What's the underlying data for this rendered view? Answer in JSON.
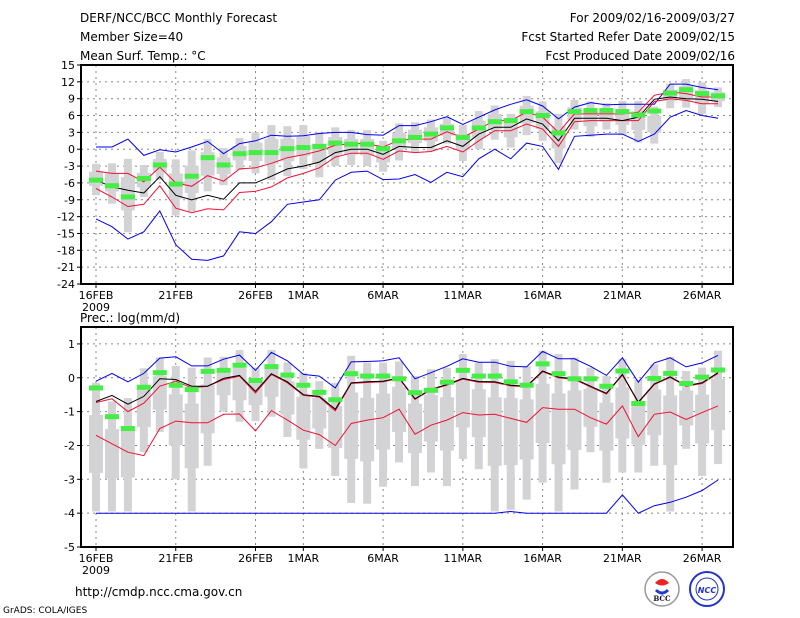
{
  "header": {
    "title": "DERF/NCC/BCC Monthly Forecast",
    "member_size": "Member Size=40",
    "variable": "Mean Surf. Temp.: °C",
    "period": "For 2009/02/16-2009/03/27",
    "start_date": "Fcst Started Refer Date 2009/02/15",
    "produced_date": "Fcst Produced Date 2009/02/16"
  },
  "footer": {
    "url": "http://cmdp.ncc.cma.gov.cn",
    "credit": "GrADS: COLA/IGES",
    "logos": [
      "BCC",
      "NCC"
    ]
  },
  "colors": {
    "range": "#d3d3d6",
    "mean": "#44ee44",
    "median": "#000000",
    "spread": "#ee1133",
    "extreme": "#0000ee",
    "grid": "#888888"
  },
  "chart_data": [
    {
      "type": "box-line",
      "title": "Mean Surf. Temp.: °C",
      "ylim": [
        -24,
        15
      ],
      "yticks": [
        "15",
        "12",
        "9",
        "6",
        "3",
        "0",
        "-3",
        "-6",
        "-9",
        "-12",
        "-15",
        "-18",
        "-21",
        "-24"
      ],
      "ytick_values": [
        15,
        12,
        9,
        6,
        3,
        0,
        -3,
        -6,
        -9,
        -12,
        -15,
        -18,
        -21,
        -24
      ],
      "xtick_days": [
        0,
        5,
        10,
        13,
        18,
        23,
        28,
        33,
        38
      ],
      "xticks": [
        "16FEB",
        "21FEB",
        "26FEB",
        "1MAR",
        "6MAR",
        "11MAR",
        "16MAR",
        "21MAR",
        "26MAR"
      ],
      "xtick_year": "2009",
      "grid": true,
      "days": 40,
      "range_low": [
        -8.2,
        -9.7,
        -14.8,
        -8.5,
        -5.5,
        -11.8,
        -11.1,
        -7.5,
        -6.4,
        -3.7,
        -4.3,
        -5.5,
        -4.8,
        -3.5,
        -5,
        -3,
        -2.8,
        -3,
        -4,
        -2,
        -0.5,
        -0.3,
        1,
        -2.1,
        0,
        1.7,
        0.3,
        2.5,
        1.5,
        -2.5,
        3.5,
        2.2,
        3.5,
        2.5,
        1.2,
        1.0,
        7.3,
        7.4,
        6.3,
        7.5
      ],
      "range_high": [
        -2.6,
        -2.5,
        -1.7,
        -2.8,
        -0.5,
        -1.8,
        -0.2,
        1.8,
        0.2,
        2.0,
        3.0,
        4.3,
        4.1,
        4.3,
        3,
        3.9,
        3.4,
        3.4,
        1.5,
        4.6,
        4.8,
        5.3,
        5.7,
        4.3,
        6.8,
        7.8,
        6.3,
        9.5,
        8.5,
        6.3,
        8.8,
        8.5,
        8.2,
        8.6,
        8.6,
        7.6,
        11.7,
        12.5,
        11.9,
        11.0
      ],
      "mean": [
        -5.5,
        -6.5,
        -8.5,
        -5.2,
        -2.8,
        -6.2,
        -4.8,
        -1.5,
        -2.8,
        -0.8,
        -0.6,
        -0.6,
        0.1,
        0.3,
        0.5,
        1.1,
        0.9,
        0.9,
        0.1,
        1.5,
        2.1,
        2.7,
        3.8,
        2.1,
        3.8,
        4.9,
        5.1,
        6.7,
        6.0,
        2.9,
        6.7,
        6.9,
        6.9,
        6.7,
        6.1,
        6.8,
        10.0,
        10.6,
        9.9,
        9.5
      ],
      "median": [
        -5.5,
        -6.7,
        -7.3,
        -7.8,
        -4.9,
        -8.2,
        -9.0,
        -8.2,
        -8.9,
        -6.0,
        -6.0,
        -4.8,
        -3.5,
        -3.0,
        -2.3,
        -0.6,
        0,
        0,
        -0.9,
        0.5,
        0.3,
        0.3,
        1.5,
        0.5,
        2.7,
        3.9,
        3.9,
        5.4,
        4.5,
        1.5,
        5.5,
        5.5,
        5.5,
        5.1,
        5.7,
        8.9,
        9.3,
        9.0,
        8.9,
        8.5
      ],
      "spread_upper": [
        -3.9,
        -4.3,
        -4.3,
        -5.8,
        -3.2,
        -6.0,
        -6.6,
        -4.7,
        -5.7,
        -3.5,
        -3.3,
        -2.5,
        -1.5,
        -1.0,
        -0.3,
        0.7,
        1.0,
        1.0,
        0.4,
        1.6,
        1.8,
        1.8,
        3.1,
        2.1,
        3.6,
        5.1,
        5.1,
        6.6,
        5.7,
        3.0,
        6.3,
        6.3,
        6.3,
        6.3,
        6.6,
        9.6,
        10.2,
        9.9,
        9.3,
        9.3
      ],
      "spread_lower": [
        -7.0,
        -8.5,
        -10.2,
        -9.8,
        -6.5,
        -10.5,
        -11.3,
        -10.6,
        -10.8,
        -7.7,
        -7.5,
        -6.7,
        -5.1,
        -4.3,
        -3.3,
        -1.4,
        -0.7,
        -0.7,
        -1.8,
        -0.3,
        -0.6,
        -0.4,
        0.5,
        -0.5,
        1.5,
        3.3,
        3.3,
        4.5,
        3.6,
        0.5,
        4.9,
        5.1,
        5.1,
        5.1,
        5.1,
        8.5,
        9.0,
        8.7,
        8.1,
        8.1
      ],
      "extreme_upper": [
        0.4,
        0.4,
        1.8,
        -1.1,
        -0.1,
        -0.5,
        0.4,
        1.4,
        -0.8,
        1.0,
        1.5,
        2.5,
        2.3,
        2.4,
        2.8,
        3.0,
        3.0,
        2.6,
        2.5,
        4.2,
        4.2,
        4.9,
        5.8,
        4.4,
        5.7,
        7.0,
        8.0,
        8.8,
        7.7,
        5.4,
        7.5,
        8.3,
        7.9,
        8.0,
        8.0,
        8.0,
        11.6,
        11.6,
        11.0,
        10.6
      ],
      "extreme_lower": [
        -12.4,
        -13.8,
        -16.0,
        -14.7,
        -11.0,
        -17.0,
        -19.6,
        -19.8,
        -19.0,
        -14.7,
        -15.0,
        -12.9,
        -9.8,
        -9.4,
        -9.0,
        -5.5,
        -4.1,
        -3.9,
        -5.4,
        -5.3,
        -4.5,
        -5.9,
        -4.1,
        -4.9,
        -1.7,
        0.0,
        -1.7,
        1.1,
        0.5,
        -3.6,
        2.3,
        2.5,
        2.7,
        2.7,
        1.4,
        2.7,
        5.7,
        6.9,
        6.0,
        5.5
      ]
    },
    {
      "type": "box-line",
      "title": "Prec.: log(mm/d)",
      "ylim": [
        -5,
        1.5
      ],
      "yticks": [
        "1",
        "0",
        "-1",
        "-2",
        "-3",
        "-4",
        "-5"
      ],
      "ytick_values": [
        1,
        0,
        -1,
        -2,
        -3,
        -4,
        -5
      ],
      "xtick_days": [
        0,
        5,
        10,
        13,
        18,
        23,
        28,
        33,
        38
      ],
      "xticks": [
        "16FEB",
        "21FEB",
        "26FEB",
        "1MAR",
        "6MAR",
        "11MAR",
        "16MAR",
        "21MAR",
        "26MAR"
      ],
      "xtick_year": "2009",
      "grid": true,
      "days": 40,
      "range_low": [
        -3.95,
        -3.95,
        -3.95,
        -2.2,
        -1.6,
        -3.0,
        -3.95,
        -2.6,
        -1.0,
        -1.3,
        -1.28,
        -1.15,
        -1.75,
        -2.68,
        -2.1,
        -2.9,
        -3.7,
        -3.72,
        -3.22,
        -2.5,
        -3.2,
        -2.8,
        -3.2,
        -2.4,
        -2.7,
        -3.95,
        -3.9,
        -3.6,
        -3.1,
        -3.95,
        -3.3,
        -2.2,
        -3.1,
        -2.8,
        -2.8,
        -2.6,
        -3.95,
        -2.1,
        -2.9,
        -2.55
      ],
      "range_high": [
        -0.15,
        -0.7,
        -0.6,
        0.28,
        0.6,
        0.35,
        0.3,
        0.6,
        0.62,
        0.82,
        0.3,
        0.82,
        0.45,
        0.15,
        -0.1,
        -0.15,
        0.65,
        0.45,
        0.45,
        0.48,
        0.05,
        0.25,
        0.3,
        0.7,
        0.45,
        0.55,
        0.5,
        0.35,
        0.8,
        0.7,
        0.6,
        0.3,
        0.05,
        0.55,
        -0.05,
        0.4,
        0.62,
        0.2,
        0.3,
        0.8
      ],
      "mean": [
        -0.3,
        -1.15,
        -1.5,
        -0.28,
        0.15,
        -0.22,
        -0.35,
        0.19,
        0.22,
        0.37,
        -0.08,
        0.33,
        0.08,
        -0.22,
        -0.43,
        -0.65,
        0.12,
        0.05,
        0.05,
        -0.03,
        -0.44,
        -0.37,
        -0.13,
        0.22,
        0.05,
        0.05,
        -0.12,
        -0.22,
        0.41,
        0.12,
        -0.03,
        -0.03,
        -0.25,
        0.2,
        -0.76,
        -0.02,
        0.13,
        -0.17,
        0.02,
        0.23
      ],
      "median": [
        -0.7,
        -0.52,
        -0.78,
        -0.55,
        -0.03,
        -0.05,
        -0.25,
        -0.25,
        -0.02,
        0.07,
        -0.4,
        0.12,
        -0.12,
        -0.5,
        -0.55,
        -0.93,
        -0.15,
        -0.12,
        -0.1,
        0,
        -0.62,
        -0.34,
        -0.2,
        -0.02,
        -0.11,
        -0.12,
        -0.22,
        -0.25,
        0.2,
        0.02,
        -0.03,
        -0.25,
        -0.46,
        0.1,
        -0.72,
        -0.18,
        0.03,
        -0.23,
        -0.15,
        0.15
      ],
      "spread_upper": [
        -0.73,
        -0.62,
        -1.0,
        -0.75,
        -0.25,
        -0.1,
        -0.3,
        -0.25,
        -0.05,
        0.05,
        -0.45,
        0.1,
        -0.15,
        -0.52,
        -0.57,
        -0.98,
        -0.17,
        -0.14,
        -0.12,
        -0.02,
        -0.64,
        -0.36,
        -0.22,
        -0.04,
        -0.13,
        -0.14,
        -0.24,
        -0.27,
        0.18,
        0.0,
        -0.05,
        -0.27,
        -0.48,
        0.08,
        -0.74,
        -0.2,
        0.01,
        -0.25,
        -0.17,
        0.13
      ],
      "spread_lower": [
        -1.7,
        -1.95,
        -2.2,
        -2.3,
        -1.5,
        -1.28,
        -1.33,
        -1.33,
        -1.08,
        -1.07,
        -1.57,
        -0.97,
        -1.25,
        -1.55,
        -1.68,
        -2.0,
        -1.35,
        -1.25,
        -1.18,
        -0.93,
        -1.67,
        -1.4,
        -1.25,
        -1.03,
        -1.1,
        -1.08,
        -1.2,
        -1.32,
        -0.88,
        -0.93,
        -0.93,
        -1.18,
        -1.37,
        -0.83,
        -1.74,
        -1.08,
        -1.01,
        -1.23,
        -1.03,
        -0.83
      ],
      "extreme_upper": [
        -0.1,
        0.13,
        -0.12,
        0.13,
        0.58,
        0.62,
        0.35,
        0.35,
        0.55,
        0.67,
        0.22,
        0.75,
        0.5,
        0.1,
        0.05,
        -0.3,
        0.47,
        0.48,
        0.5,
        0.59,
        -0.03,
        0.15,
        0.34,
        0.56,
        0.46,
        0.46,
        0.34,
        0.32,
        0.78,
        0.56,
        0.56,
        0.34,
        0.07,
        0.59,
        -0.13,
        0.44,
        0.59,
        0.32,
        0.44,
        0.66
      ],
      "extreme_lower": [
        -4,
        -4,
        -4,
        -4,
        -4,
        -4,
        -4,
        -4,
        -4,
        -4,
        -4,
        -4,
        -4,
        -4,
        -4,
        -4,
        -4,
        -4,
        -4,
        -4,
        -4,
        -4,
        -4,
        -4,
        -4,
        -4,
        -3.95,
        -4,
        -4,
        -4,
        -4,
        -4,
        -4,
        -3.46,
        -4,
        -3.78,
        -3.68,
        -3.53,
        -3.33,
        -3.02
      ]
    }
  ]
}
